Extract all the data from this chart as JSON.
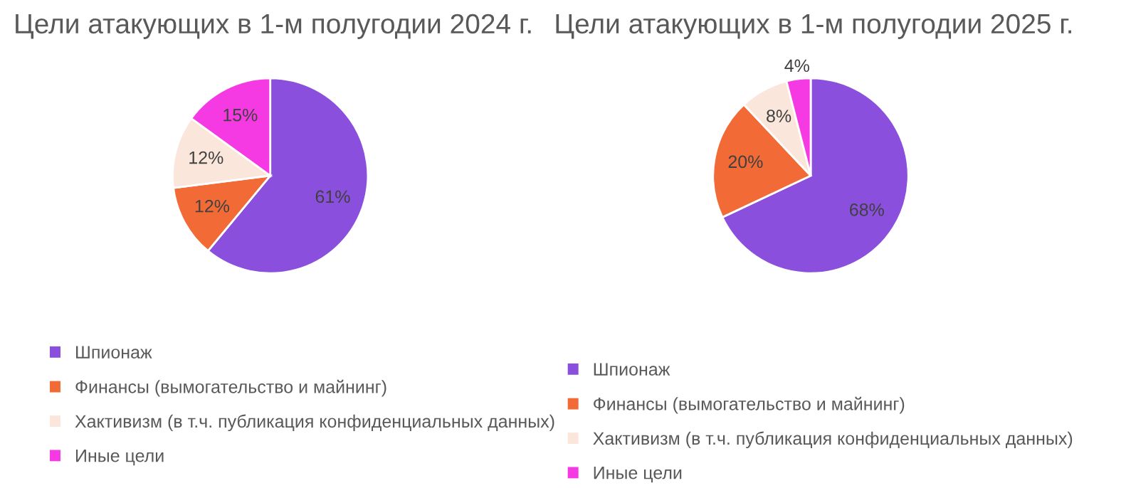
{
  "chart_data": [
    {
      "type": "pie",
      "title": "Цели атакующих в 1-м полугодии 2024 г.",
      "categories": [
        "Шпионаж",
        "Финансы (вымогательство и майнинг)",
        "Хактивизм (в т.ч. публикация конфиденциальных данных)",
        "Иные цели"
      ],
      "values": [
        61,
        12,
        12,
        15
      ],
      "colors": [
        "#8a4fdc",
        "#f26a36",
        "#fbe6dc",
        "#f53ae4"
      ],
      "value_labels": [
        "61%",
        "12%",
        "12%",
        "15%"
      ],
      "legend": "bottom"
    },
    {
      "type": "pie",
      "title": "Цели атакующих в 1-м полугодии 2025 г.",
      "categories": [
        "Шпионаж",
        "Финансы (вымогательство и майнинг)",
        "Хактивизм (в т.ч. публикация конфиденциальных данных)",
        "Иные цели"
      ],
      "values": [
        68,
        20,
        8,
        4
      ],
      "colors": [
        "#8a4fdc",
        "#f26a36",
        "#fbe6dc",
        "#f53ae4"
      ],
      "value_labels": [
        "68%",
        "20%",
        "8%",
        "4%"
      ],
      "legend": "bottom"
    }
  ]
}
